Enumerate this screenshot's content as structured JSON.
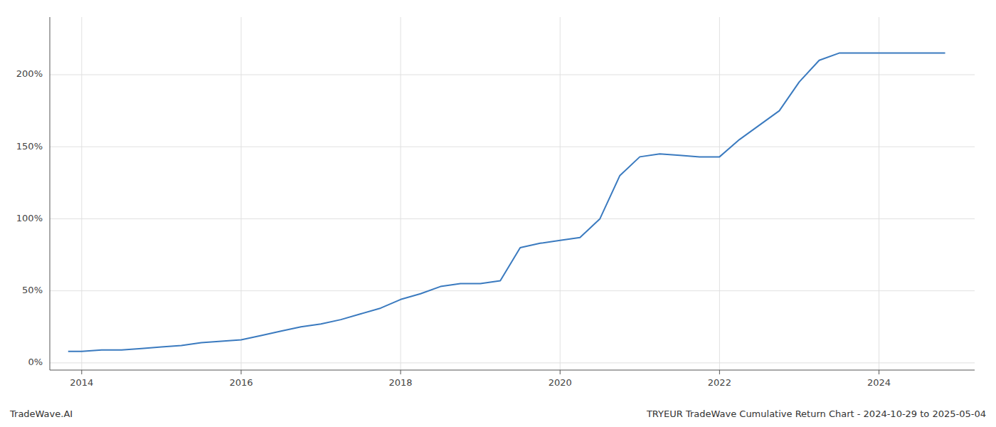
{
  "chart_data": {
    "type": "line",
    "annotations": [
      "TradeWave.AI",
      "TRYEUR TradeWave Cumulative Return Chart - 2024-10-29 to 2025-05-04"
    ],
    "color": "#3a7abf",
    "grid": true,
    "x": [
      2013.83,
      2014.0,
      2014.25,
      2014.5,
      2014.75,
      2015.0,
      2015.25,
      2015.5,
      2015.75,
      2016.0,
      2016.25,
      2016.5,
      2016.75,
      2017.0,
      2017.25,
      2017.5,
      2017.75,
      2018.0,
      2018.25,
      2018.5,
      2018.75,
      2019.0,
      2019.25,
      2019.5,
      2019.75,
      2020.0,
      2020.25,
      2020.5,
      2020.75,
      2021.0,
      2021.25,
      2021.5,
      2021.75,
      2022.0,
      2022.25,
      2022.5,
      2022.75,
      2023.0,
      2023.25,
      2023.5,
      2023.75,
      2024.0,
      2024.25,
      2024.5,
      2024.75,
      2024.83
    ],
    "values": [
      8,
      8,
      9,
      9,
      10,
      11,
      12,
      14,
      15,
      16,
      19,
      22,
      25,
      27,
      30,
      34,
      38,
      44,
      48,
      53,
      55,
      55,
      57,
      80,
      83,
      85,
      87,
      100,
      130,
      143,
      145,
      144,
      143,
      143,
      155,
      165,
      175,
      195,
      210,
      215,
      215,
      215,
      215,
      215,
      215,
      215
    ],
    "xlim": [
      2013.6,
      2025.2
    ],
    "ylim": [
      -5,
      240
    ],
    "xticks": [
      2014,
      2016,
      2018,
      2020,
      2022,
      2024
    ],
    "yticks": [
      {
        "value": 0,
        "label": "0%"
      },
      {
        "value": 50,
        "label": "50%"
      },
      {
        "value": 100,
        "label": "100%"
      },
      {
        "value": 150,
        "label": "150%"
      },
      {
        "value": 200,
        "label": "200%"
      }
    ]
  }
}
